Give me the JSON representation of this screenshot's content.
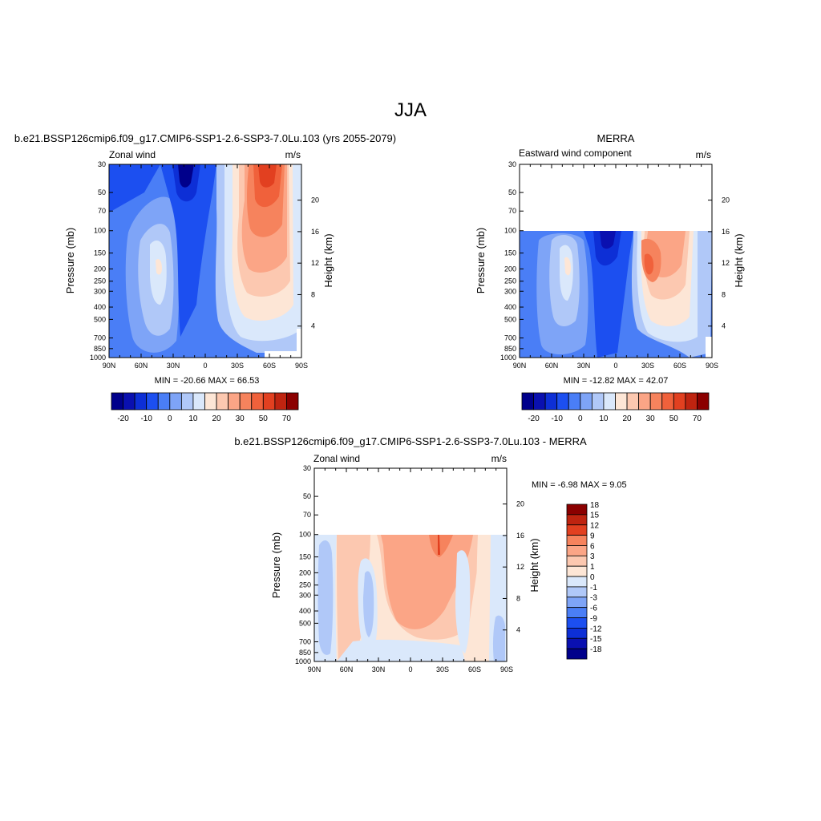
{
  "page": {
    "main_title": "JJA"
  },
  "panels": {
    "model": {
      "title": "b.e21.BSSP126cmip6.f09_g17.CMIP6-SSP1-2.6-SSP3-7.0Lu.103 (yrs 2055-2079)",
      "left_label": "Zonal wind",
      "right_label": "m/s",
      "stats": "MIN = -20.66  MAX =  66.53"
    },
    "obs": {
      "title": "MERRA",
      "left_label": "Eastward wind component",
      "right_label": "m/s",
      "stats": "MIN = -12.82  MAX =  42.07"
    },
    "diff": {
      "title": "b.e21.BSSP126cmip6.f09_g17.CMIP6-SSP1-2.6-SSP3-7.0Lu.103 - MERRA",
      "left_label": "Zonal wind",
      "right_label": "m/s",
      "stats": "MIN =  -6.98  MAX =   9.05"
    }
  },
  "axes": {
    "ylabel": "Pressure (mb)",
    "y2label": "Height (km)",
    "x_ticks": [
      "90N",
      "60N",
      "30N",
      "0",
      "30S",
      "60S",
      "90S"
    ],
    "p_ticks": [
      "30",
      "50",
      "70",
      "100",
      "150",
      "200",
      "250",
      "300",
      "400",
      "500",
      "700",
      "850",
      "1000"
    ],
    "h_ticks": [
      "20",
      "16",
      "12",
      "8",
      "4"
    ]
  },
  "colorbars": {
    "main_colors": [
      "#00008b",
      "#0a10b0",
      "#0d2fd6",
      "#1c4ff0",
      "#4a7ef6",
      "#7ea4f7",
      "#b0c8f8",
      "#dae8fb",
      "#fde6d6",
      "#fcc8b0",
      "#fba586",
      "#f6835d",
      "#f0613b",
      "#e24020",
      "#bf2410",
      "#8b0000"
    ],
    "main_labels": [
      "-20",
      "-10",
      "0",
      "10",
      "20",
      "30",
      "50",
      "70"
    ],
    "diff_colors": [
      "#8b0000",
      "#bf2410",
      "#e24020",
      "#f6835d",
      "#fba586",
      "#fcc8b0",
      "#fde6d6",
      "#dae8fb",
      "#b0c8f8",
      "#7ea4f7",
      "#4a7ef6",
      "#1c4ff0",
      "#0d2fd6",
      "#0a10b0",
      "#00008b"
    ],
    "diff_labels": [
      "18",
      "15",
      "12",
      "9",
      "6",
      "3",
      "1",
      "0",
      "-1",
      "-3",
      "-6",
      "-9",
      "-12",
      "-15",
      "-18"
    ]
  },
  "chart_data": [
    {
      "type": "heatmap",
      "title": "b.e21.BSSP126cmip6.f09_g17.CMIP6-SSP1-2.6-SSP3-7.0Lu.103 (yrs 2055-2079)",
      "variable": "Zonal wind",
      "units": "m/s",
      "xlabel": "",
      "ylabel": "Pressure (mb)",
      "y2label": "Height (km)",
      "x_range": [
        "90N",
        "90S"
      ],
      "y_range": [
        30,
        1000
      ],
      "y_scale": "log",
      "min": -20.66,
      "max": 66.53,
      "contour_levels": [
        -20,
        -15,
        -10,
        -5,
        0,
        5,
        10,
        15,
        20,
        25,
        30,
        40,
        50,
        60,
        70
      ]
    },
    {
      "type": "heatmap",
      "title": "MERRA",
      "variable": "Eastward wind component",
      "units": "m/s",
      "xlabel": "",
      "ylabel": "Pressure (mb)",
      "y2label": "Height (km)",
      "x_range": [
        "90N",
        "90S"
      ],
      "y_range": [
        30,
        1000
      ],
      "y_scale": "log",
      "min": -12.82,
      "max": 42.07,
      "contour_levels": [
        -20,
        -15,
        -10,
        -5,
        0,
        5,
        10,
        15,
        20,
        25,
        30,
        40,
        50,
        60,
        70
      ]
    },
    {
      "type": "heatmap",
      "title": "b.e21.BSSP126cmip6.f09_g17.CMIP6-SSP1-2.6-SSP3-7.0Lu.103 - MERRA",
      "variable": "Zonal wind",
      "units": "m/s",
      "xlabel": "",
      "ylabel": "Pressure (mb)",
      "y2label": "Height (km)",
      "x_range": [
        "90N",
        "90S"
      ],
      "y_range": [
        30,
        1000
      ],
      "y_scale": "log",
      "min": -6.98,
      "max": 9.05,
      "contour_levels": [
        -18,
        -15,
        -12,
        -9,
        -6,
        -3,
        -1,
        0,
        1,
        3,
        6,
        9,
        12,
        15,
        18
      ]
    }
  ]
}
